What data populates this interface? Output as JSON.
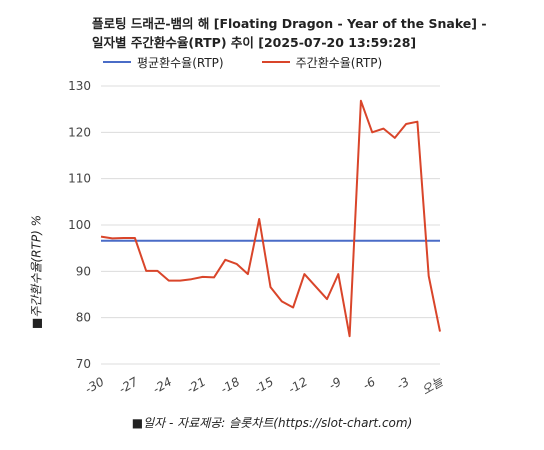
{
  "chart_data": {
    "type": "line",
    "title": "플로팅 드래곤-뱀의 해 [Floating Dragon - Year of the Snake] - 일자별 주간환수율(RTP) 추이 [2025-07-20 13:59:28]",
    "ylabel": "주간환수율(RTP) %",
    "xlabel": "일자 - 자료제공: 슬롯차트(https://slot-chart.com)",
    "ylim": [
      70,
      130
    ],
    "yticks": [
      "70",
      "80",
      "90",
      "100",
      "110",
      "120",
      "130"
    ],
    "xticks": [
      "-30",
      "-27",
      "-24",
      "-21",
      "-18",
      "-15",
      "-12",
      "-9",
      "-6",
      "-3",
      "오늘"
    ],
    "grid": true,
    "legend_position": "top",
    "x": [
      -30,
      -29,
      -28,
      -27,
      -26,
      -25,
      -24,
      -23,
      -22,
      -21,
      -20,
      -19,
      -18,
      -17,
      -16,
      -15,
      -14,
      -13,
      -12,
      -11,
      -10,
      -9,
      -8,
      -7,
      -6,
      -5,
      -4,
      -3,
      -2,
      -1,
      0
    ],
    "series": [
      {
        "name": "평균환수율(RTP)",
        "color": "#4a6cc7",
        "values": [
          96.6,
          96.6,
          96.6,
          96.6,
          96.6,
          96.6,
          96.6,
          96.6,
          96.6,
          96.6,
          96.6,
          96.6,
          96.6,
          96.6,
          96.6,
          96.6,
          96.6,
          96.6,
          96.6,
          96.6,
          96.6,
          96.6,
          96.6,
          96.6,
          96.6,
          96.6,
          96.6,
          96.6,
          96.6,
          96.6,
          96.6
        ]
      },
      {
        "name": "주간환수율(RTP)",
        "color": "#d9452a",
        "values": [
          97.5,
          97.1,
          97.2,
          97.2,
          90.1,
          90.1,
          88.0,
          88.0,
          88.3,
          88.8,
          88.7,
          92.5,
          91.6,
          89.4,
          101.3,
          86.6,
          83.5,
          82.2,
          89.4,
          86.7,
          84.0,
          89.4,
          76.0,
          126.8,
          120.0,
          120.8,
          118.8,
          121.8,
          122.3,
          89.0,
          77.0
        ]
      }
    ]
  }
}
